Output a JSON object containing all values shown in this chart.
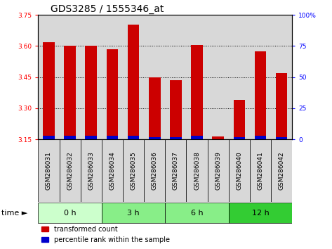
{
  "title": "GDS3285 / 1555346_at",
  "samples": [
    "GSM286031",
    "GSM286032",
    "GSM286033",
    "GSM286034",
    "GSM286035",
    "GSM286036",
    "GSM286037",
    "GSM286038",
    "GSM286039",
    "GSM286040",
    "GSM286041",
    "GSM286042"
  ],
  "red_values": [
    3.62,
    3.6,
    3.6,
    3.585,
    3.705,
    3.45,
    3.435,
    3.605,
    3.165,
    3.34,
    3.575,
    3.47
  ],
  "blue_percentiles": [
    3,
    3,
    3,
    3,
    3,
    2,
    2,
    3,
    0,
    2,
    3,
    2
  ],
  "y_min": 3.15,
  "y_max": 3.75,
  "y_ticks_left": [
    3.15,
    3.3,
    3.45,
    3.6,
    3.75
  ],
  "y_ticks_right_vals": [
    0,
    25,
    50,
    75,
    100
  ],
  "group_labels": [
    "0 h",
    "3 h",
    "6 h",
    "12 h"
  ],
  "group_starts": [
    0,
    3,
    6,
    9
  ],
  "group_ends": [
    3,
    6,
    9,
    12
  ],
  "group_colors": [
    "#ccffcc",
    "#88ee88",
    "#88ee88",
    "#33cc33"
  ],
  "bar_width": 0.55,
  "red_color": "#cc0000",
  "blue_color": "#0000cc",
  "col_bg_color": "#d8d8d8",
  "white_bg": "#ffffff",
  "legend_red": "transformed count",
  "legend_blue": "percentile rank within the sample",
  "tick_label_fontsize": 6.5,
  "title_fontsize": 10,
  "time_arrow": "time ►"
}
